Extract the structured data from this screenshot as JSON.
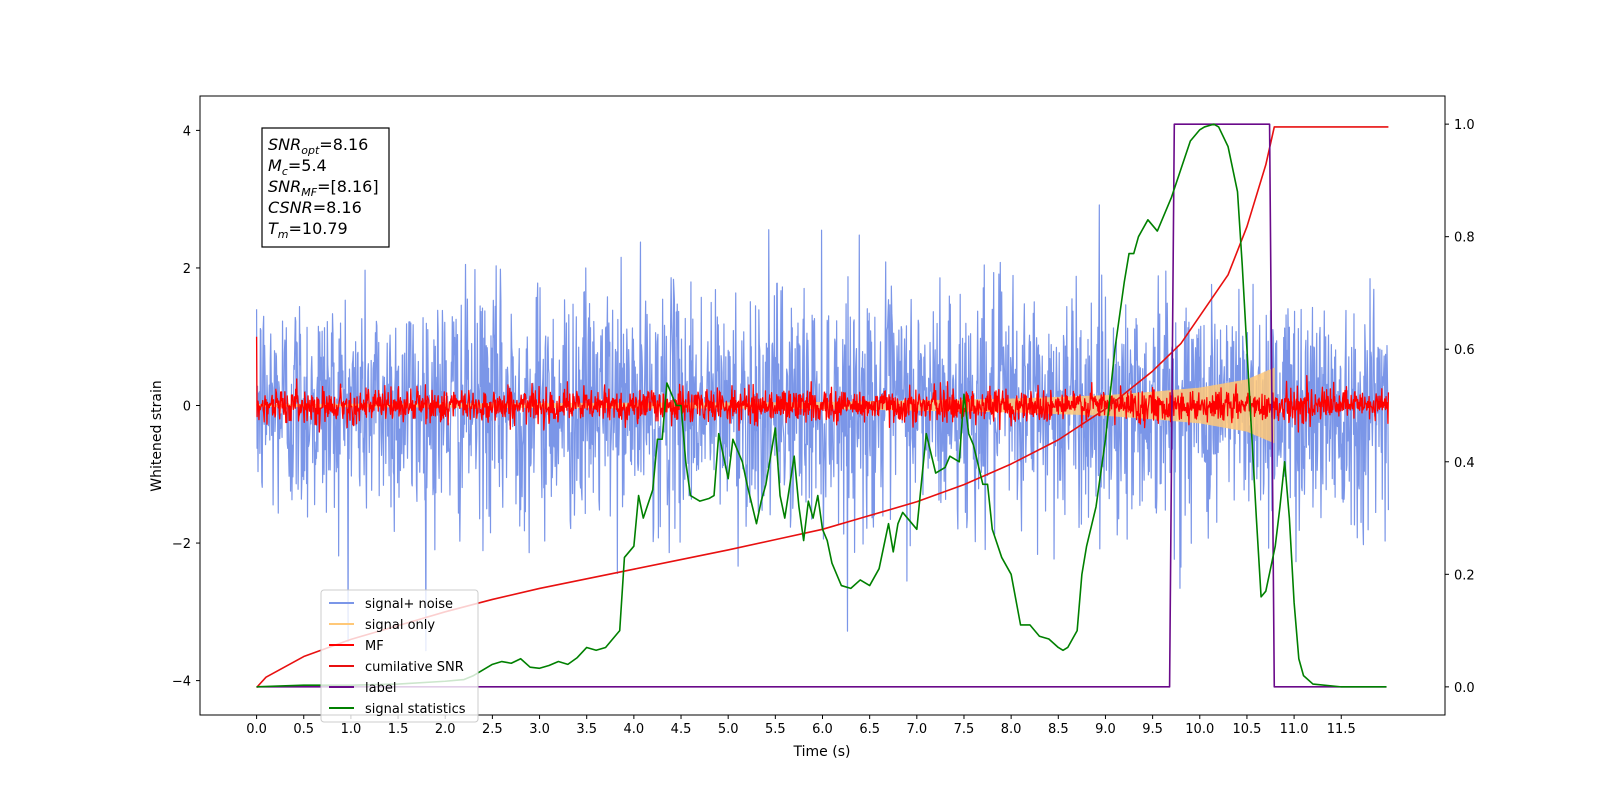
{
  "chart_data": {
    "type": "line",
    "xlabel": "Time (s)",
    "ylabel": "Whitened strain",
    "xlim": [
      -0.6,
      12.6
    ],
    "ylim": [
      -4.5,
      4.5
    ],
    "y2lim": [
      -0.05,
      1.05
    ],
    "x_ticks": [
      "0.0",
      "0.5",
      "1.0",
      "1.5",
      "2.0",
      "2.5",
      "3.0",
      "3.5",
      "4.0",
      "4.5",
      "5.0",
      "5.5",
      "6.0",
      "6.5",
      "7.0",
      "7.5",
      "8.0",
      "8.5",
      "9.0",
      "9.5",
      "10.0",
      "10.5",
      "11.0",
      "11.5"
    ],
    "y_ticks": [
      "4",
      "2",
      "0",
      "−2",
      "−4"
    ],
    "y2_ticks": [
      "1.0",
      "0.8",
      "0.6",
      "0.4",
      "0.2",
      "0.0"
    ],
    "grid": false,
    "legend_placement": "lower-left",
    "annotation": {
      "lines": [
        {
          "main": "SNR",
          "sub": "opt",
          "rest": "=8.16"
        },
        {
          "main": "M",
          "sub": "c",
          "rest": "=5.4"
        },
        {
          "main": "SNR",
          "sub": "MF",
          "rest": "=[8.16]"
        },
        {
          "main": "CSNR",
          "sub": "",
          "rest": "=8.16"
        },
        {
          "main": "T",
          "sub": "m",
          "rest": "=10.79"
        }
      ]
    },
    "series": [
      {
        "name": "signal+ noise",
        "color": "#7b96e8",
        "axis": "left",
        "kind": "noise",
        "t_range": [
          0,
          12
        ],
        "sigma": 0.85,
        "center": 0.0
      },
      {
        "name": "signal only",
        "color": "#ffc878",
        "axis": "left",
        "kind": "chirp_envelope",
        "t_range": [
          0,
          10.79
        ],
        "envelope": [
          [
            0,
            0.02
          ],
          [
            6,
            0.05
          ],
          [
            8,
            0.1
          ],
          [
            9,
            0.15
          ],
          [
            9.5,
            0.2
          ],
          [
            10,
            0.26
          ],
          [
            10.5,
            0.38
          ],
          [
            10.79,
            0.55
          ]
        ]
      },
      {
        "name": "MF",
        "color": "#ff0000",
        "axis": "left",
        "kind": "noise",
        "t_range": [
          0,
          12
        ],
        "sigma": 0.12,
        "center": 0.0
      },
      {
        "name": "cumilative SNR",
        "color": "#e81010",
        "axis": "left",
        "points": [
          [
            0,
            -4.1
          ],
          [
            0.1,
            -3.95
          ],
          [
            0.5,
            -3.65
          ],
          [
            1,
            -3.4
          ],
          [
            1.5,
            -3.2
          ],
          [
            2,
            -3.0
          ],
          [
            2.5,
            -2.82
          ],
          [
            3,
            -2.66
          ],
          [
            3.5,
            -2.52
          ],
          [
            4,
            -2.38
          ],
          [
            4.5,
            -2.24
          ],
          [
            5,
            -2.1
          ],
          [
            5.5,
            -1.95
          ],
          [
            6,
            -1.8
          ],
          [
            6.5,
            -1.6
          ],
          [
            7,
            -1.4
          ],
          [
            7.5,
            -1.15
          ],
          [
            8,
            -0.85
          ],
          [
            8.5,
            -0.5
          ],
          [
            9,
            -0.05
          ],
          [
            9.5,
            0.5
          ],
          [
            9.8,
            0.9
          ],
          [
            10,
            1.3
          ],
          [
            10.3,
            1.9
          ],
          [
            10.5,
            2.6
          ],
          [
            10.7,
            3.5
          ],
          [
            10.79,
            4.05
          ],
          [
            12,
            4.05
          ]
        ]
      },
      {
        "name": "label",
        "color": "#6a0a8a",
        "axis": "right",
        "points": [
          [
            0,
            0
          ],
          [
            9.68,
            0
          ],
          [
            9.73,
            1
          ],
          [
            10.74,
            1
          ],
          [
            10.79,
            0
          ],
          [
            11.98,
            0
          ]
        ]
      },
      {
        "name": "signal statistics",
        "color": "#008000",
        "axis": "right",
        "points": [
          [
            0,
            0.0
          ],
          [
            0.5,
            0.003
          ],
          [
            1,
            0.003
          ],
          [
            1.5,
            0.005
          ],
          [
            2,
            0.01
          ],
          [
            2.2,
            0.013
          ],
          [
            2.3,
            0.02
          ],
          [
            2.4,
            0.03
          ],
          [
            2.5,
            0.04
          ],
          [
            2.6,
            0.045
          ],
          [
            2.7,
            0.042
          ],
          [
            2.8,
            0.05
          ],
          [
            2.9,
            0.035
          ],
          [
            3.0,
            0.033
          ],
          [
            3.1,
            0.038
          ],
          [
            3.2,
            0.045
          ],
          [
            3.3,
            0.04
          ],
          [
            3.4,
            0.052
          ],
          [
            3.5,
            0.07
          ],
          [
            3.6,
            0.065
          ],
          [
            3.7,
            0.07
          ],
          [
            3.8,
            0.09
          ],
          [
            3.85,
            0.1
          ],
          [
            3.9,
            0.23
          ],
          [
            4.0,
            0.25
          ],
          [
            4.05,
            0.34
          ],
          [
            4.1,
            0.3
          ],
          [
            4.2,
            0.35
          ],
          [
            4.25,
            0.44
          ],
          [
            4.3,
            0.44
          ],
          [
            4.35,
            0.54
          ],
          [
            4.45,
            0.5
          ],
          [
            4.5,
            0.5
          ],
          [
            4.55,
            0.4
          ],
          [
            4.6,
            0.34
          ],
          [
            4.7,
            0.33
          ],
          [
            4.8,
            0.335
          ],
          [
            4.85,
            0.34
          ],
          [
            4.9,
            0.45
          ],
          [
            5.0,
            0.37
          ],
          [
            5.05,
            0.44
          ],
          [
            5.15,
            0.4
          ],
          [
            5.2,
            0.36
          ],
          [
            5.3,
            0.29
          ],
          [
            5.35,
            0.33
          ],
          [
            5.4,
            0.36
          ],
          [
            5.5,
            0.46
          ],
          [
            5.55,
            0.34
          ],
          [
            5.6,
            0.3
          ],
          [
            5.7,
            0.41
          ],
          [
            5.75,
            0.32
          ],
          [
            5.8,
            0.26
          ],
          [
            5.85,
            0.33
          ],
          [
            5.9,
            0.3
          ],
          [
            5.95,
            0.34
          ],
          [
            6.0,
            0.28
          ],
          [
            6.05,
            0.26
          ],
          [
            6.1,
            0.22
          ],
          [
            6.2,
            0.18
          ],
          [
            6.3,
            0.175
          ],
          [
            6.4,
            0.19
          ],
          [
            6.5,
            0.18
          ],
          [
            6.6,
            0.21
          ],
          [
            6.7,
            0.29
          ],
          [
            6.75,
            0.24
          ],
          [
            6.8,
            0.29
          ],
          [
            6.85,
            0.31
          ],
          [
            6.9,
            0.3
          ],
          [
            7.0,
            0.28
          ],
          [
            7.1,
            0.45
          ],
          [
            7.2,
            0.38
          ],
          [
            7.3,
            0.39
          ],
          [
            7.35,
            0.41
          ],
          [
            7.45,
            0.4
          ],
          [
            7.5,
            0.52
          ],
          [
            7.55,
            0.45
          ],
          [
            7.6,
            0.43
          ],
          [
            7.7,
            0.36
          ],
          [
            7.75,
            0.36
          ],
          [
            7.8,
            0.28
          ],
          [
            7.9,
            0.23
          ],
          [
            8.0,
            0.2
          ],
          [
            8.1,
            0.11
          ],
          [
            8.2,
            0.11
          ],
          [
            8.3,
            0.09
          ],
          [
            8.4,
            0.085
          ],
          [
            8.5,
            0.07
          ],
          [
            8.55,
            0.065
          ],
          [
            8.6,
            0.07
          ],
          [
            8.7,
            0.1
          ],
          [
            8.75,
            0.2
          ],
          [
            8.8,
            0.25
          ],
          [
            8.9,
            0.32
          ],
          [
            9.0,
            0.44
          ],
          [
            9.05,
            0.52
          ],
          [
            9.1,
            0.6
          ],
          [
            9.2,
            0.72
          ],
          [
            9.25,
            0.77
          ],
          [
            9.3,
            0.77
          ],
          [
            9.35,
            0.8
          ],
          [
            9.45,
            0.83
          ],
          [
            9.55,
            0.81
          ],
          [
            9.7,
            0.87
          ],
          [
            9.8,
            0.92
          ],
          [
            9.9,
            0.97
          ],
          [
            10.0,
            0.99
          ],
          [
            10.05,
            0.995
          ],
          [
            10.15,
            1.0
          ],
          [
            10.2,
            0.995
          ],
          [
            10.3,
            0.96
          ],
          [
            10.4,
            0.88
          ],
          [
            10.45,
            0.75
          ],
          [
            10.5,
            0.6
          ],
          [
            10.55,
            0.45
          ],
          [
            10.6,
            0.3
          ],
          [
            10.65,
            0.16
          ],
          [
            10.7,
            0.17
          ],
          [
            10.8,
            0.25
          ],
          [
            10.85,
            0.32
          ],
          [
            10.9,
            0.4
          ],
          [
            10.95,
            0.3
          ],
          [
            11.0,
            0.15
          ],
          [
            11.05,
            0.05
          ],
          [
            11.1,
            0.02
          ],
          [
            11.2,
            0.005
          ],
          [
            11.5,
            0.0
          ],
          [
            11.98,
            0.0
          ]
        ]
      }
    ]
  }
}
